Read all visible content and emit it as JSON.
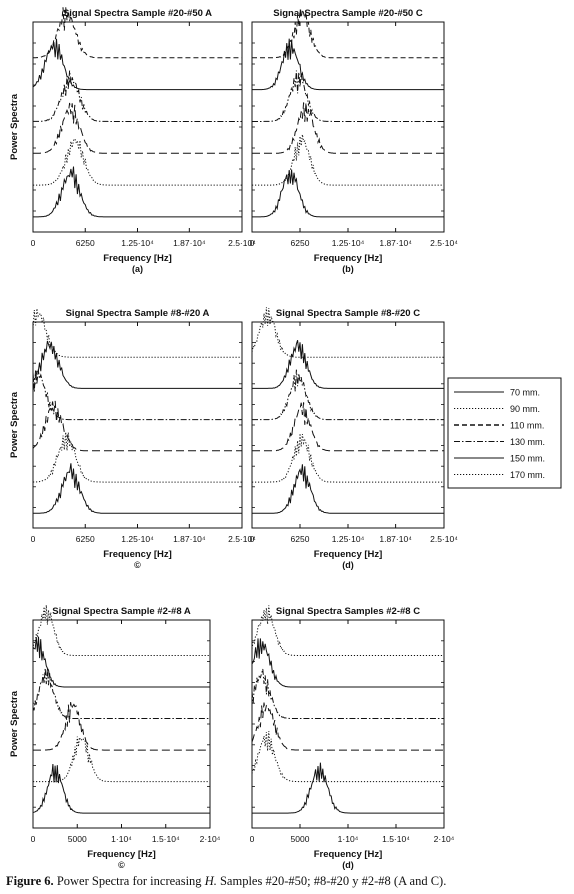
{
  "caption": {
    "label": "Figure 6.",
    "text_before": " Power Spectra for increasing ",
    "italic": "H.",
    "text_after": " Samples #20-#50; #8-#20 y #2-#8 (A and C)."
  },
  "legend": {
    "items": [
      {
        "label": "70 mm.",
        "style": "solid"
      },
      {
        "label": "90 mm.",
        "style": "dotted"
      },
      {
        "label": "110 mm.",
        "style": "dashed"
      },
      {
        "label": "130 mm.",
        "style": "dashdot"
      },
      {
        "label": "150 mm.",
        "style": "solid"
      },
      {
        "label": "170 mm.",
        "style": "dotted"
      }
    ]
  },
  "chart_data": [
    {
      "type": "line",
      "title": "Signal Spectra Sample #20-#50 A",
      "xlabel": "Frequency [Hz]",
      "ylabel": "Power Spectra",
      "panel_label": "(a)",
      "xlim": [
        0,
        25000
      ],
      "xticks": [
        0,
        6250,
        12500,
        18700,
        25000
      ],
      "xtick_labels": [
        "0",
        "6250",
        "1.25·10⁴",
        "1.87·10⁴",
        "2.5·10⁴"
      ],
      "traces_top_to_bottom": [
        "dashed",
        "solid",
        "dashdot",
        "longdash",
        "dotted",
        "solid"
      ],
      "peak_hz": [
        4000,
        2500,
        4500,
        4500,
        5000,
        4500
      ]
    },
    {
      "type": "line",
      "title": "Signal Spectra Sample #20-#50 C",
      "xlabel": "Frequency [Hz]",
      "ylabel": "",
      "panel_label": "(b)",
      "xlim": [
        0,
        25000
      ],
      "xticks": [
        0,
        6250,
        12500,
        18700,
        25000
      ],
      "xtick_labels": [
        "0",
        "6250",
        "1.25·10⁴",
        "1.87·10⁴",
        "2.5·10⁴"
      ],
      "traces_top_to_bottom": [
        "dashed",
        "solid",
        "dashdot",
        "longdash",
        "dotted",
        "solid"
      ],
      "peak_hz": [
        6500,
        5000,
        6000,
        7000,
        6500,
        5000
      ]
    },
    {
      "type": "line",
      "title": "Signal Spectra Sample #8-#20 A",
      "xlabel": "Frequency [Hz]",
      "ylabel": "Power Spectra",
      "panel_label": "©",
      "xlim": [
        0,
        25000
      ],
      "xticks": [
        0,
        6250,
        12500,
        18700,
        25000
      ],
      "xtick_labels": [
        "0",
        "6250",
        "1.25·10⁴",
        "1.87·10⁴",
        "2.5·10⁴"
      ],
      "traces_top_to_bottom": [
        "dotted",
        "solid",
        "dashdot",
        "longdash",
        "dotted",
        "solid"
      ],
      "peak_hz": [
        500,
        2000,
        500,
        2500,
        4000,
        4500
      ]
    },
    {
      "type": "line",
      "title": "Signal Spectra Sample #8-#20 C",
      "xlabel": "Frequency [Hz]",
      "ylabel": "",
      "panel_label": "(d)",
      "xlim": [
        0,
        25000
      ],
      "xticks": [
        0,
        6250,
        12500,
        18700,
        25000
      ],
      "xtick_labels": [
        "0",
        "6250",
        "1.25·10⁴",
        "1.87·10⁴",
        "2.5·10⁴"
      ],
      "traces_top_to_bottom": [
        "dotted",
        "solid",
        "dashdot",
        "longdash",
        "dotted",
        "solid"
      ],
      "peak_hz": [
        2000,
        6000,
        6000,
        6500,
        6500,
        6500
      ]
    },
    {
      "type": "line",
      "title": "Signal Spectra Sample #2-#8 A",
      "xlabel": "Frequency [Hz]",
      "ylabel": "Power Spectra",
      "panel_label": "©",
      "xlim": [
        0,
        20000
      ],
      "xticks": [
        0,
        5000,
        10000,
        15000,
        20000
      ],
      "xtick_labels": [
        "0",
        "5000",
        "1·10⁴",
        "1.5·10⁴",
        "2·10⁴"
      ],
      "traces_top_to_bottom": [
        "dotted",
        "solid",
        "dashdot",
        "longdash",
        "dotted",
        "solid"
      ],
      "peak_hz": [
        1500,
        500,
        1500,
        4500,
        5500,
        2500
      ]
    },
    {
      "type": "line",
      "title": "Signal Spectra Samples #2-#8 C",
      "xlabel": "Frequency [Hz]",
      "ylabel": "",
      "panel_label": "(d)",
      "xlim": [
        0,
        20000
      ],
      "xticks": [
        0,
        5000,
        10000,
        15000,
        20000
      ],
      "xtick_labels": [
        "0",
        "5000",
        "1·10⁴",
        "1.5·10⁴",
        "2·10⁴"
      ],
      "traces_top_to_bottom": [
        "dotted",
        "solid",
        "dashdot",
        "longdash",
        "dotted",
        "solid"
      ],
      "peak_hz": [
        1500,
        1000,
        1000,
        1500,
        1500,
        7000
      ]
    }
  ]
}
